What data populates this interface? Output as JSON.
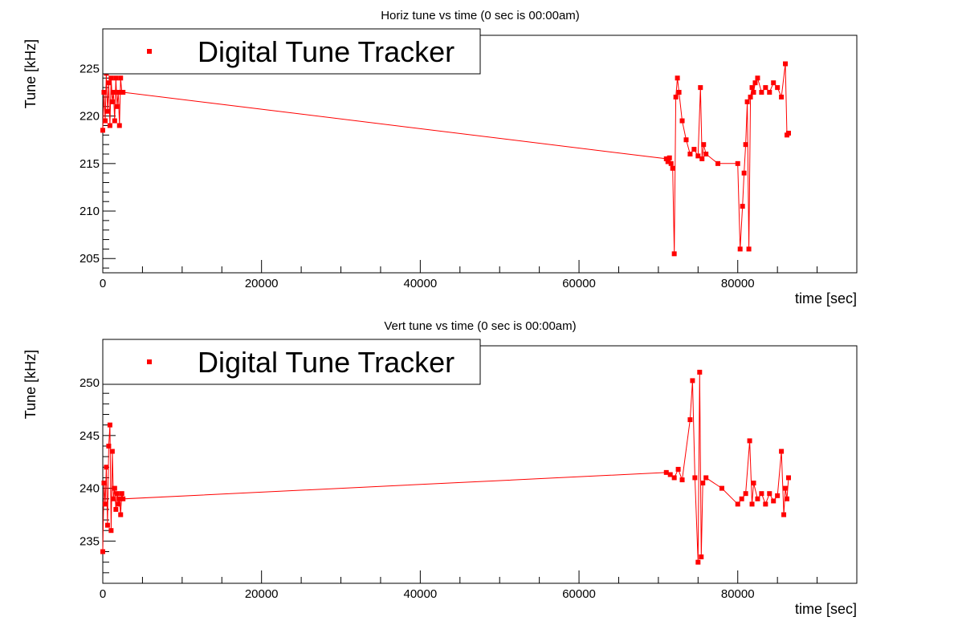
{
  "chart_data": [
    {
      "type": "line",
      "title": "Horiz tune vs time (0 sec is 00:00am)",
      "xlabel": "time [sec]",
      "ylabel": "Tune [kHz]",
      "xlim": [
        0,
        95000
      ],
      "ylim": [
        203.5,
        228.5
      ],
      "x_ticks": [
        0,
        20000,
        40000,
        60000,
        80000
      ],
      "y_ticks": [
        205,
        210,
        215,
        220,
        225
      ],
      "series_color": "#ff0000",
      "legend": {
        "label": "Digital Tune Tracker",
        "placement": "top-left"
      },
      "series": [
        {
          "name": "Digital Tune Tracker",
          "x": [
            0,
            150,
            300,
            450,
            600,
            750,
            900,
            1050,
            1200,
            1350,
            1500,
            1650,
            1800,
            1950,
            2100,
            2250,
            2400,
            2550,
            71000,
            71200,
            71400,
            71600,
            71800,
            72000,
            72200,
            72400,
            72600,
            73000,
            73500,
            74000,
            74500,
            75000,
            75300,
            75500,
            75700,
            76000,
            77500,
            80000,
            80300,
            80600,
            80800,
            81000,
            81200,
            81400,
            81600,
            81800,
            82000,
            82200,
            82500,
            83000,
            83500,
            84000,
            84500,
            85000,
            85500,
            86000,
            86200,
            86400
          ],
          "y": [
            218.5,
            222.5,
            219.5,
            224.5,
            220.5,
            223.5,
            219.0,
            224.0,
            221.5,
            222.5,
            219.5,
            224.0,
            221.0,
            222.5,
            219.0,
            224.0,
            222.5,
            222.5,
            215.5,
            215.2,
            215.6,
            215.0,
            214.5,
            205.5,
            222.0,
            224.0,
            222.5,
            219.5,
            217.5,
            216.0,
            216.5,
            215.8,
            223.0,
            215.5,
            217.0,
            216.0,
            215.0,
            215.0,
            206.0,
            210.5,
            214.0,
            217.0,
            221.5,
            206.0,
            222.0,
            223.0,
            222.5,
            223.5,
            224.0,
            222.5,
            223.0,
            222.5,
            223.5,
            223.0,
            222.0,
            225.5,
            218.0,
            218.2
          ]
        }
      ]
    },
    {
      "type": "line",
      "title": "Vert tune vs time (0 sec is 00:00am)",
      "xlabel": "time [sec]",
      "ylabel": "Tune [kHz]",
      "xlim": [
        0,
        95000
      ],
      "ylim": [
        231.0,
        253.5
      ],
      "x_ticks": [
        0,
        20000,
        40000,
        60000,
        80000
      ],
      "y_ticks": [
        235,
        240,
        245,
        250
      ],
      "series_color": "#ff0000",
      "legend": {
        "label": "Digital Tune Tracker",
        "placement": "top-left"
      },
      "series": [
        {
          "name": "Digital Tune Tracker",
          "x": [
            0,
            150,
            300,
            450,
            600,
            750,
            900,
            1050,
            1200,
            1350,
            1500,
            1650,
            1800,
            1950,
            2100,
            2250,
            2400,
            2550,
            71000,
            71500,
            72000,
            72500,
            73000,
            74000,
            74300,
            74600,
            75000,
            75200,
            75400,
            75600,
            76000,
            78000,
            80000,
            80500,
            81000,
            81500,
            81800,
            82000,
            82500,
            83000,
            83500,
            84000,
            84500,
            85000,
            85500,
            85800,
            86000,
            86200,
            86400
          ],
          "y": [
            234.0,
            240.5,
            238.5,
            242.0,
            236.5,
            244.0,
            246.0,
            236.0,
            243.5,
            239.0,
            240.0,
            238.0,
            239.5,
            238.5,
            239.0,
            237.5,
            239.5,
            239.0,
            241.5,
            241.3,
            241.0,
            241.8,
            240.8,
            246.5,
            250.2,
            241.0,
            233.0,
            251.0,
            233.5,
            240.5,
            241.0,
            240.0,
            238.5,
            239.0,
            239.5,
            244.5,
            238.5,
            240.5,
            239.0,
            239.5,
            238.5,
            239.5,
            238.8,
            239.3,
            243.5,
            237.5,
            240.0,
            239.0,
            241.0
          ]
        }
      ]
    }
  ]
}
